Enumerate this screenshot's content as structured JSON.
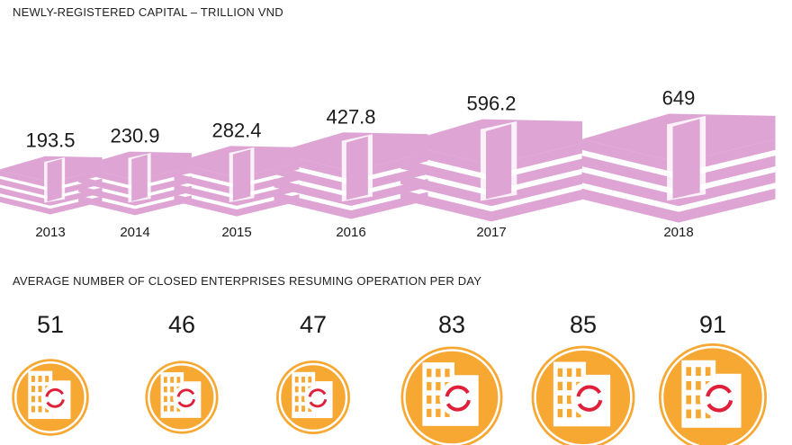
{
  "titles": {
    "capital": "NEWLY-REGISTERED CAPITAL – TRILLION VND",
    "closed": "AVERAGE NUMBER OF CLOSED ENTERPRISES RESUMING OPERATION PER DAY"
  },
  "colors": {
    "money": "#dea4d3",
    "money_stroke": "#ffffff",
    "building_circle": "#f7a833",
    "building": "#f7a833",
    "refresh": "#e0203a"
  },
  "icons": {
    "capital": "money-stack-icon",
    "closed": "building-refresh-icon"
  },
  "chart_data": [
    {
      "type": "bar",
      "title": "NEWLY-REGISTERED CAPITAL – TRILLION VND",
      "categories": [
        "2013",
        "2014",
        "2015",
        "2016",
        "2017",
        "2018"
      ],
      "values": [
        193.5,
        230.9,
        282.4,
        427.8,
        596.2,
        649
      ],
      "value_labels": [
        "193.5",
        "230.9",
        "282.4",
        "427.8",
        "596.2",
        "649"
      ]
    },
    {
      "type": "bar",
      "title": "AVERAGE NUMBER OF CLOSED ENTERPRISES RESUMING OPERATION PER DAY",
      "categories": [
        "2013",
        "2014",
        "2015",
        "2016",
        "2017",
        "2018"
      ],
      "values": [
        51,
        46,
        47,
        83,
        85,
        91
      ],
      "value_labels": [
        "51",
        "46",
        "47",
        "83",
        "85",
        "91"
      ]
    }
  ]
}
